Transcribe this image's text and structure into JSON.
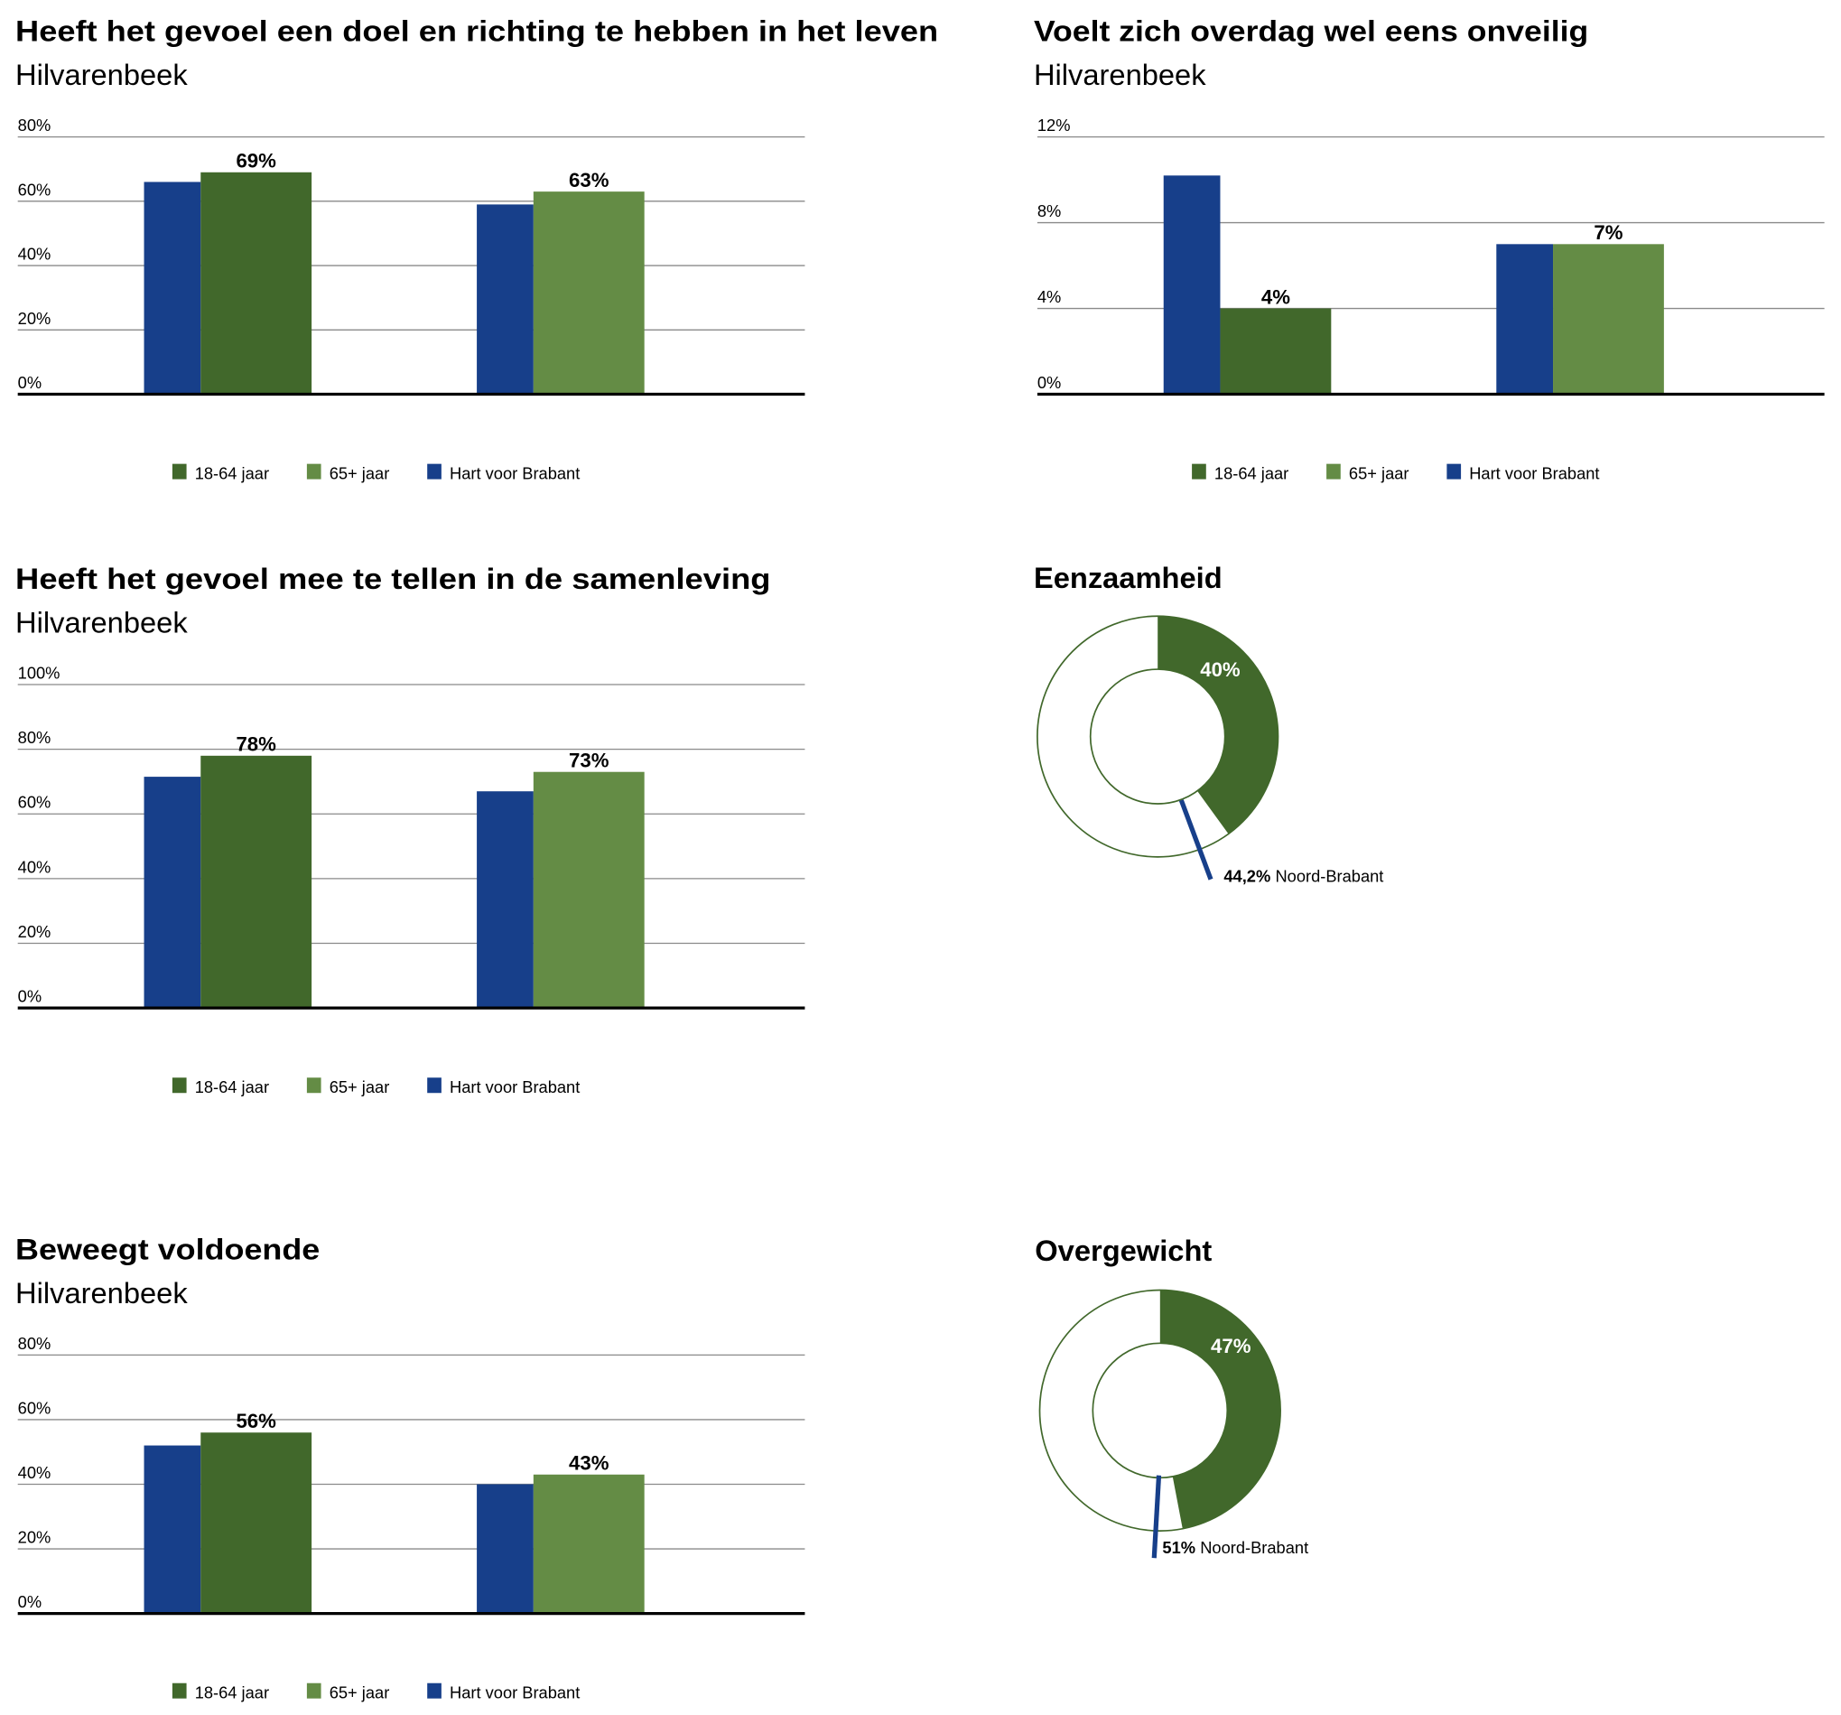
{
  "colors": {
    "hart_voor_brabant": "#173f8a",
    "age_18_64": "#41682b",
    "age_65_plus": "#648c45",
    "grid": "#8a8a8a"
  },
  "chart_data": [
    {
      "type": "bar",
      "title": "Heeft het gevoel een doel en richting te hebben in het leven",
      "subtitle": "Hilvarenbeek",
      "yticks": [
        "0%",
        "20%",
        "40%",
        "60%",
        "80%"
      ],
      "ylim": [
        0,
        80
      ],
      "grid": true,
      "legend_position": "bottom",
      "legend": [
        "18-64 jaar",
        "65+ jaar",
        "Hart voor Brabant"
      ],
      "groups": [
        {
          "reference": 66,
          "value": 69,
          "label": "69%",
          "series": "18-64 jaar"
        },
        {
          "reference": 59,
          "value": 63,
          "label": "63%",
          "series": "65+ jaar"
        }
      ]
    },
    {
      "type": "bar",
      "title": "Voelt zich overdag wel eens onveilig",
      "subtitle": "Hilvarenbeek",
      "yticks": [
        "0%",
        "4%",
        "8%",
        "12%"
      ],
      "ylim": [
        0,
        12
      ],
      "grid": true,
      "legend_position": "bottom",
      "legend": [
        "18-64 jaar",
        "65+ jaar",
        "Hart voor Brabant"
      ],
      "groups": [
        {
          "reference": 10.2,
          "value": 4,
          "label": "4%",
          "series": "18-64 jaar"
        },
        {
          "reference": 7,
          "value": 7,
          "label": "7%",
          "series": "65+ jaar"
        }
      ]
    },
    {
      "type": "bar",
      "title": "Heeft het gevoel mee te tellen in de samenleving",
      "subtitle": "Hilvarenbeek",
      "yticks": [
        "0%",
        "20%",
        "40%",
        "60%",
        "80%",
        "100%"
      ],
      "ylim": [
        0,
        100
      ],
      "grid": true,
      "legend_position": "bottom",
      "legend": [
        "18-64 jaar",
        "65+ jaar",
        "Hart voor Brabant"
      ],
      "groups": [
        {
          "reference": 71.5,
          "value": 78,
          "label": "78%",
          "series": "18-64 jaar"
        },
        {
          "reference": 67,
          "value": 73,
          "label": "73%",
          "series": "65+ jaar"
        }
      ]
    },
    {
      "type": "bar",
      "title": "Beweegt voldoende",
      "subtitle": "Hilvarenbeek",
      "yticks": [
        "0%",
        "20%",
        "40%",
        "60%",
        "80%"
      ],
      "ylim": [
        0,
        80
      ],
      "grid": true,
      "legend_position": "bottom",
      "legend": [
        "18-64 jaar",
        "65+ jaar",
        "Hart voor Brabant"
      ],
      "groups": [
        {
          "reference": 52,
          "value": 56,
          "label": "56%",
          "series": "18-64 jaar"
        },
        {
          "reference": 40,
          "value": 43,
          "label": "43%",
          "series": "65+ jaar"
        }
      ]
    },
    {
      "type": "pie",
      "title": "Eenzaamheid",
      "value": 40,
      "label": "40%",
      "reference": 44.2,
      "reference_value_label": "44,2%",
      "reference_name": "Noord-Brabant"
    },
    {
      "type": "pie",
      "title": "Overgewicht",
      "value": 47,
      "label": "47%",
      "reference": 51,
      "reference_value_label": "51%",
      "reference_name": "Noord-Brabant"
    }
  ]
}
